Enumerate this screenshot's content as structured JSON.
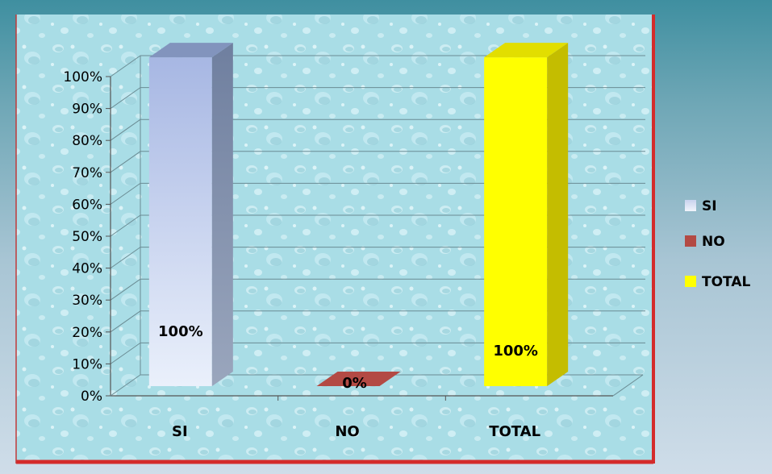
{
  "chart_data": {
    "type": "bar",
    "categories": [
      "SI",
      "NO",
      "TOTAL"
    ],
    "values": [
      100,
      0,
      100
    ],
    "data_labels": [
      "100%",
      "0%",
      "100%"
    ],
    "yticks": [
      "0%",
      "10%",
      "20%",
      "30%",
      "40%",
      "50%",
      "60%",
      "70%",
      "80%",
      "90%",
      "100%"
    ],
    "ylim": [
      0,
      100
    ],
    "grid": true,
    "legend": {
      "placement": "right",
      "entries": [
        "SI",
        "NO",
        "TOTAL"
      ]
    },
    "title": "",
    "xlabel": "",
    "ylabel": ""
  },
  "colors": {
    "si_front": "#c6d2ee",
    "si_side": "#7b8aa6",
    "si_top": "#8294bd",
    "no": "#b34a44",
    "total_front": "#ffff00",
    "total_side": "#c4bd00",
    "total_top": "#e2de00",
    "plot_border": "#d42b2b",
    "plot_bg": "#a9dde6"
  }
}
